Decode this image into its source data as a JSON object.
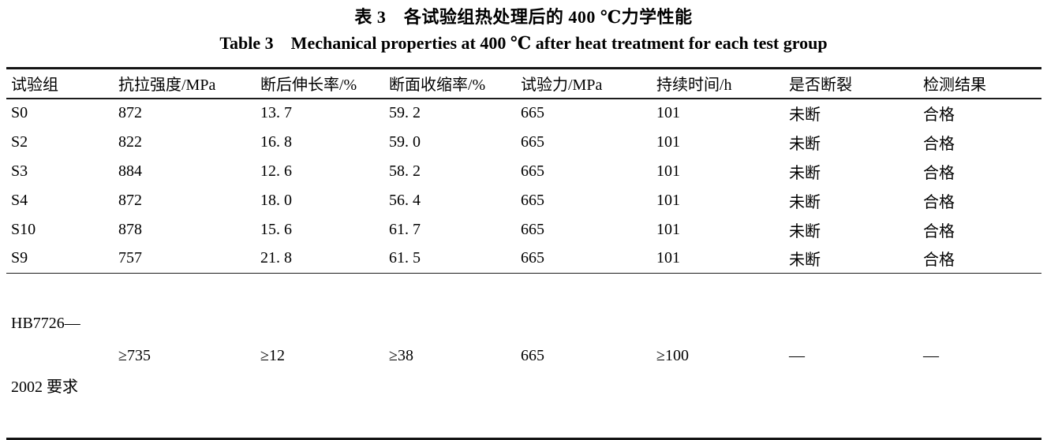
{
  "colors": {
    "background": "#ffffff",
    "text": "#000000",
    "rule": "#141414"
  },
  "titles": {
    "zh": "表 3　各试验组热处理后的 400 ℃力学性能",
    "en": "Table 3　Mechanical properties at 400 ℃ after heat treatment for each test group"
  },
  "table": {
    "columns": [
      "试验组",
      "抗拉强度/MPa",
      "断后伸长率/%",
      "断面收缩率/%",
      "试验力/MPa",
      "持续时间/h",
      "是否断裂",
      "检测结果"
    ],
    "rows": [
      [
        "S0",
        "872",
        "13. 7",
        "59. 2",
        "665",
        "101",
        "未断",
        "合格"
      ],
      [
        "S2",
        "822",
        "16. 8",
        "59. 0",
        "665",
        "101",
        "未断",
        "合格"
      ],
      [
        "S3",
        "884",
        "12. 6",
        "58. 2",
        "665",
        "101",
        "未断",
        "合格"
      ],
      [
        "S4",
        "872",
        "18. 0",
        "56. 4",
        "665",
        "101",
        "未断",
        "合格"
      ],
      [
        "S10",
        "878",
        "15. 6",
        "61. 7",
        "665",
        "101",
        "未断",
        "合格"
      ],
      [
        "S9",
        "757",
        "21. 8",
        "61. 5",
        "665",
        "101",
        "未断",
        "合格"
      ]
    ],
    "requirement_row": {
      "label_line1": "HB7726—",
      "label_line2": "2002 要求",
      "values": [
        "≥735",
        "≥12",
        "≥38",
        "665",
        "≥100",
        "—",
        "—"
      ]
    }
  }
}
